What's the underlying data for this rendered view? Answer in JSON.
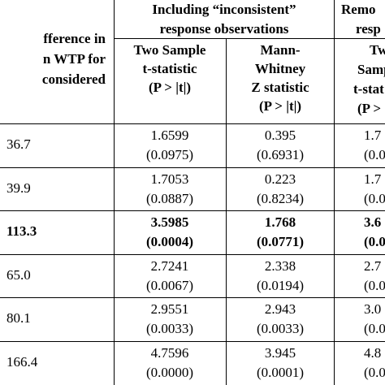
{
  "group_headers": [
    [
      "Including “inconsistent”",
      "response observations"
    ],
    [
      "Remo",
      "resp"
    ]
  ],
  "column_headers": [
    [
      "fference in",
      "n WTP for",
      "considered"
    ],
    [
      "Two Sample",
      "t-statistic",
      "(P > |t|)"
    ],
    [
      "Mann-",
      "Whitney",
      "Z statistic",
      "(P > |t|)"
    ],
    [
      "Tw",
      "Samp",
      "t-stat",
      "(P >"
    ]
  ],
  "rows": [
    {
      "cells": [
        "36.7",
        [
          "1.6599",
          "(0.0975)"
        ],
        [
          "0.395",
          "(0.6931)"
        ],
        [
          "1.7",
          "(0.0"
        ]
      ],
      "bold": false
    },
    {
      "cells": [
        "39.9",
        [
          "1.7053",
          "(0.0887)"
        ],
        [
          "0.223",
          "(0.8234)"
        ],
        [
          "1.7",
          "(0.0"
        ]
      ],
      "bold": false
    },
    {
      "cells": [
        "113.3",
        [
          "3.5985",
          "(0.0004)"
        ],
        [
          "1.768",
          "(0.0771)"
        ],
        [
          "3.6",
          "(0.0"
        ]
      ],
      "bold": true
    },
    {
      "cells": [
        "65.0",
        [
          "2.7241",
          "(0.0067)"
        ],
        [
          "2.338",
          "(0.0194)"
        ],
        [
          "2.7",
          "(0.0"
        ]
      ],
      "bold": false
    },
    {
      "cells": [
        "80.1",
        [
          "2.9551",
          "(0.0033)"
        ],
        [
          "2.943",
          "(0.0033)"
        ],
        [
          "3.0",
          "(0.0"
        ]
      ],
      "bold": false
    },
    {
      "cells": [
        "166.4",
        [
          "4.7596",
          "(0.0000)"
        ],
        [
          "3.945",
          "(0.0001)"
        ],
        [
          "4.8",
          "(0.0"
        ]
      ],
      "bold": false
    }
  ]
}
